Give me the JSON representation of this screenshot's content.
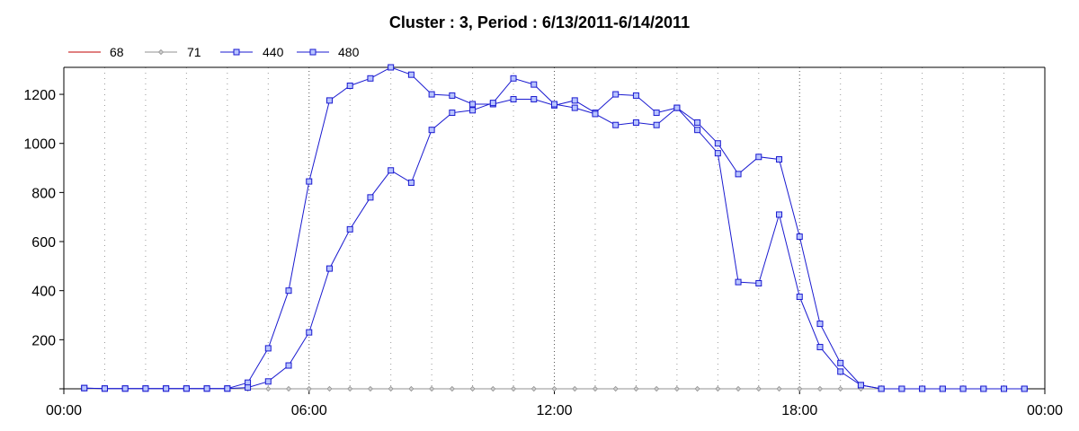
{
  "chart_data": {
    "type": "line",
    "title": "Cluster : 3, Period : 6/13/2011-6/14/2011",
    "xlabel": "",
    "ylabel": "",
    "x_unit": "hours",
    "xlim": [
      0,
      24
    ],
    "ylim": [
      0,
      1310
    ],
    "yticks": [
      200,
      400,
      600,
      800,
      1000,
      1200
    ],
    "xticks": [
      {
        "value": 0,
        "label": "00:00"
      },
      {
        "value": 6,
        "label": "06:00"
      },
      {
        "value": 12,
        "label": "12:00"
      },
      {
        "value": 18,
        "label": "18:00"
      },
      {
        "value": 24,
        "label": "00:00"
      }
    ],
    "grid": "vertical-dotted",
    "legend_position": "top-left",
    "series": [
      {
        "name": "68",
        "color": "#c00000",
        "marker": "none",
        "x": [
          0.5,
          23.5
        ],
        "y": [
          0,
          0
        ]
      },
      {
        "name": "71",
        "color": "#909090",
        "marker": "diamond",
        "x": [
          0.5,
          1,
          1.5,
          2,
          2.5,
          3,
          3.5,
          4,
          4.5,
          5,
          5.5,
          6,
          6.5,
          7,
          7.5,
          8,
          8.5,
          9,
          9.5,
          10,
          10.5,
          11,
          11.5,
          12,
          12.5,
          13,
          13.5,
          14,
          14.5,
          15,
          15.5,
          16,
          16.5,
          17,
          17.5,
          18,
          18.5,
          19,
          19.5,
          20,
          20.5,
          21,
          21.5,
          22,
          22.5,
          23,
          23.5
        ],
        "y": [
          0,
          0,
          0,
          0,
          0,
          0,
          0,
          0,
          0,
          0,
          0,
          0,
          0,
          0,
          0,
          0,
          0,
          0,
          0,
          0,
          0,
          0,
          0,
          0,
          0,
          0,
          0,
          0,
          0,
          0,
          0,
          0,
          0,
          0,
          0,
          0,
          0,
          0,
          0,
          0,
          0,
          0,
          0,
          0,
          0,
          0,
          0
        ]
      },
      {
        "name": "440",
        "color": "#1a1ad0",
        "marker": "square",
        "x": [
          0.5,
          1,
          1.5,
          2,
          2.5,
          3,
          3.5,
          4,
          4.5,
          5,
          5.5,
          6,
          6.5,
          7,
          7.5,
          8,
          8.5,
          9,
          9.5,
          10,
          10.5,
          11,
          11.5,
          12,
          12.5,
          13,
          13.5,
          14,
          14.5,
          15,
          15.5,
          16,
          16.5,
          17,
          17.5,
          18,
          18.5,
          19,
          19.5,
          20,
          20.5,
          21,
          21.5,
          22,
          22.5,
          23,
          23.5
        ],
        "y": [
          3,
          1,
          1,
          1,
          1,
          1,
          1,
          1,
          25,
          165,
          400,
          845,
          1175,
          1235,
          1265,
          1310,
          1280,
          1200,
          1195,
          1160,
          1160,
          1180,
          1180,
          1155,
          1175,
          1125,
          1200,
          1195,
          1125,
          1145,
          1085,
          1000,
          875,
          945,
          935,
          620,
          265,
          105,
          15,
          0,
          0,
          0,
          0,
          0,
          0,
          0,
          0
        ]
      },
      {
        "name": "480",
        "color": "#1a1ad0",
        "marker": "square",
        "x": [
          0.5,
          1,
          1.5,
          2,
          2.5,
          3,
          3.5,
          4,
          4.5,
          5,
          5.5,
          6,
          6.5,
          7,
          7.5,
          8,
          8.5,
          9,
          9.5,
          10,
          10.5,
          11,
          11.5,
          12,
          12.5,
          13,
          13.5,
          14,
          14.5,
          15,
          15.5,
          16,
          16.5,
          17,
          17.5,
          18,
          18.5,
          19,
          19.5,
          20,
          20.5,
          21,
          21.5,
          22,
          22.5,
          23,
          23.5
        ],
        "y": [
          3,
          1,
          1,
          1,
          1,
          1,
          1,
          1,
          5,
          30,
          95,
          230,
          490,
          650,
          780,
          890,
          840,
          1055,
          1125,
          1135,
          1165,
          1265,
          1240,
          1160,
          1145,
          1120,
          1075,
          1085,
          1075,
          1145,
          1055,
          960,
          435,
          430,
          710,
          375,
          170,
          70,
          15,
          0,
          0,
          0,
          0,
          0,
          0,
          0,
          0
        ]
      }
    ]
  }
}
